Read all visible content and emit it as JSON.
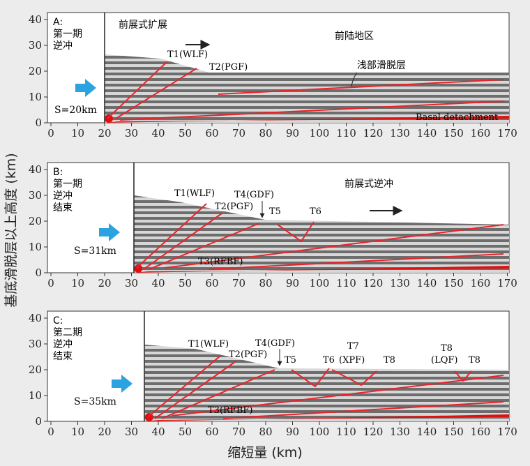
{
  "y_axis_label": "基底滑脱层以上高度 (km)",
  "x_axis_label": "缩短量 (km)",
  "x_ticks": [
    "0",
    "10",
    "20",
    "30",
    "40",
    "50",
    "60",
    "70",
    "80",
    "90",
    "100",
    "110",
    "120",
    "130",
    "140",
    "150",
    "160",
    "170"
  ],
  "y_ticks": [
    "0",
    "10",
    "20",
    "30",
    "40"
  ],
  "colors": {
    "fault": "#e8232a",
    "basal": "#e01010",
    "arrow": "#2aa3e0",
    "layer_dark": "#6d6d6d",
    "layer_light": "#d7d7d7"
  },
  "panels": [
    {
      "id": "A",
      "title_lines": [
        "A:",
        "第一期",
        "逆冲"
      ],
      "shortening": "S=20km",
      "backstop_km": 20,
      "front_label": "前展式扩展",
      "region_label": "前陆地区",
      "detachment_label": "浅部滑脱层",
      "basal_label": "Basal detachment",
      "faults": [
        {
          "name": "T1(WLF)",
          "type": "thrust"
        },
        {
          "name": "T2(PGF)",
          "type": "thrust"
        }
      ]
    },
    {
      "id": "B",
      "title_lines": [
        "B:",
        "第一期",
        "逆冲",
        "结束"
      ],
      "shortening": "S=31km",
      "backstop_km": 31,
      "front_label": "前展式逆冲",
      "faults": [
        {
          "name": "T1(WLF)",
          "type": "thrust"
        },
        {
          "name": "T2(PGF)",
          "type": "thrust"
        },
        {
          "name": "T4(GDF)",
          "type": "thrust"
        },
        {
          "name": "T5",
          "type": "popup"
        },
        {
          "name": "T6",
          "type": "popup"
        },
        {
          "name": "T3(RFBF)",
          "type": "thrust"
        }
      ]
    },
    {
      "id": "C",
      "title_lines": [
        "C:",
        "第二期",
        "逆冲",
        "结束"
      ],
      "shortening": "S=35km",
      "backstop_km": 35,
      "faults": [
        {
          "name": "T1(WLF)",
          "type": "thrust"
        },
        {
          "name": "T2(PGF)",
          "type": "thrust"
        },
        {
          "name": "T4(GDF)",
          "type": "thrust"
        },
        {
          "name": "T5",
          "type": "popup"
        },
        {
          "name": "T6",
          "type": "popup"
        },
        {
          "name": "T7",
          "type": "popup"
        },
        {
          "name": "(XPF)",
          "type": "label"
        },
        {
          "name": "T8",
          "type": "popup"
        },
        {
          "name": "T8",
          "type": "label"
        },
        {
          "name": "(LQF)",
          "type": "label"
        },
        {
          "name": "T8",
          "type": "popup"
        },
        {
          "name": "T3(RFBF)",
          "type": "thrust"
        }
      ]
    }
  ]
}
